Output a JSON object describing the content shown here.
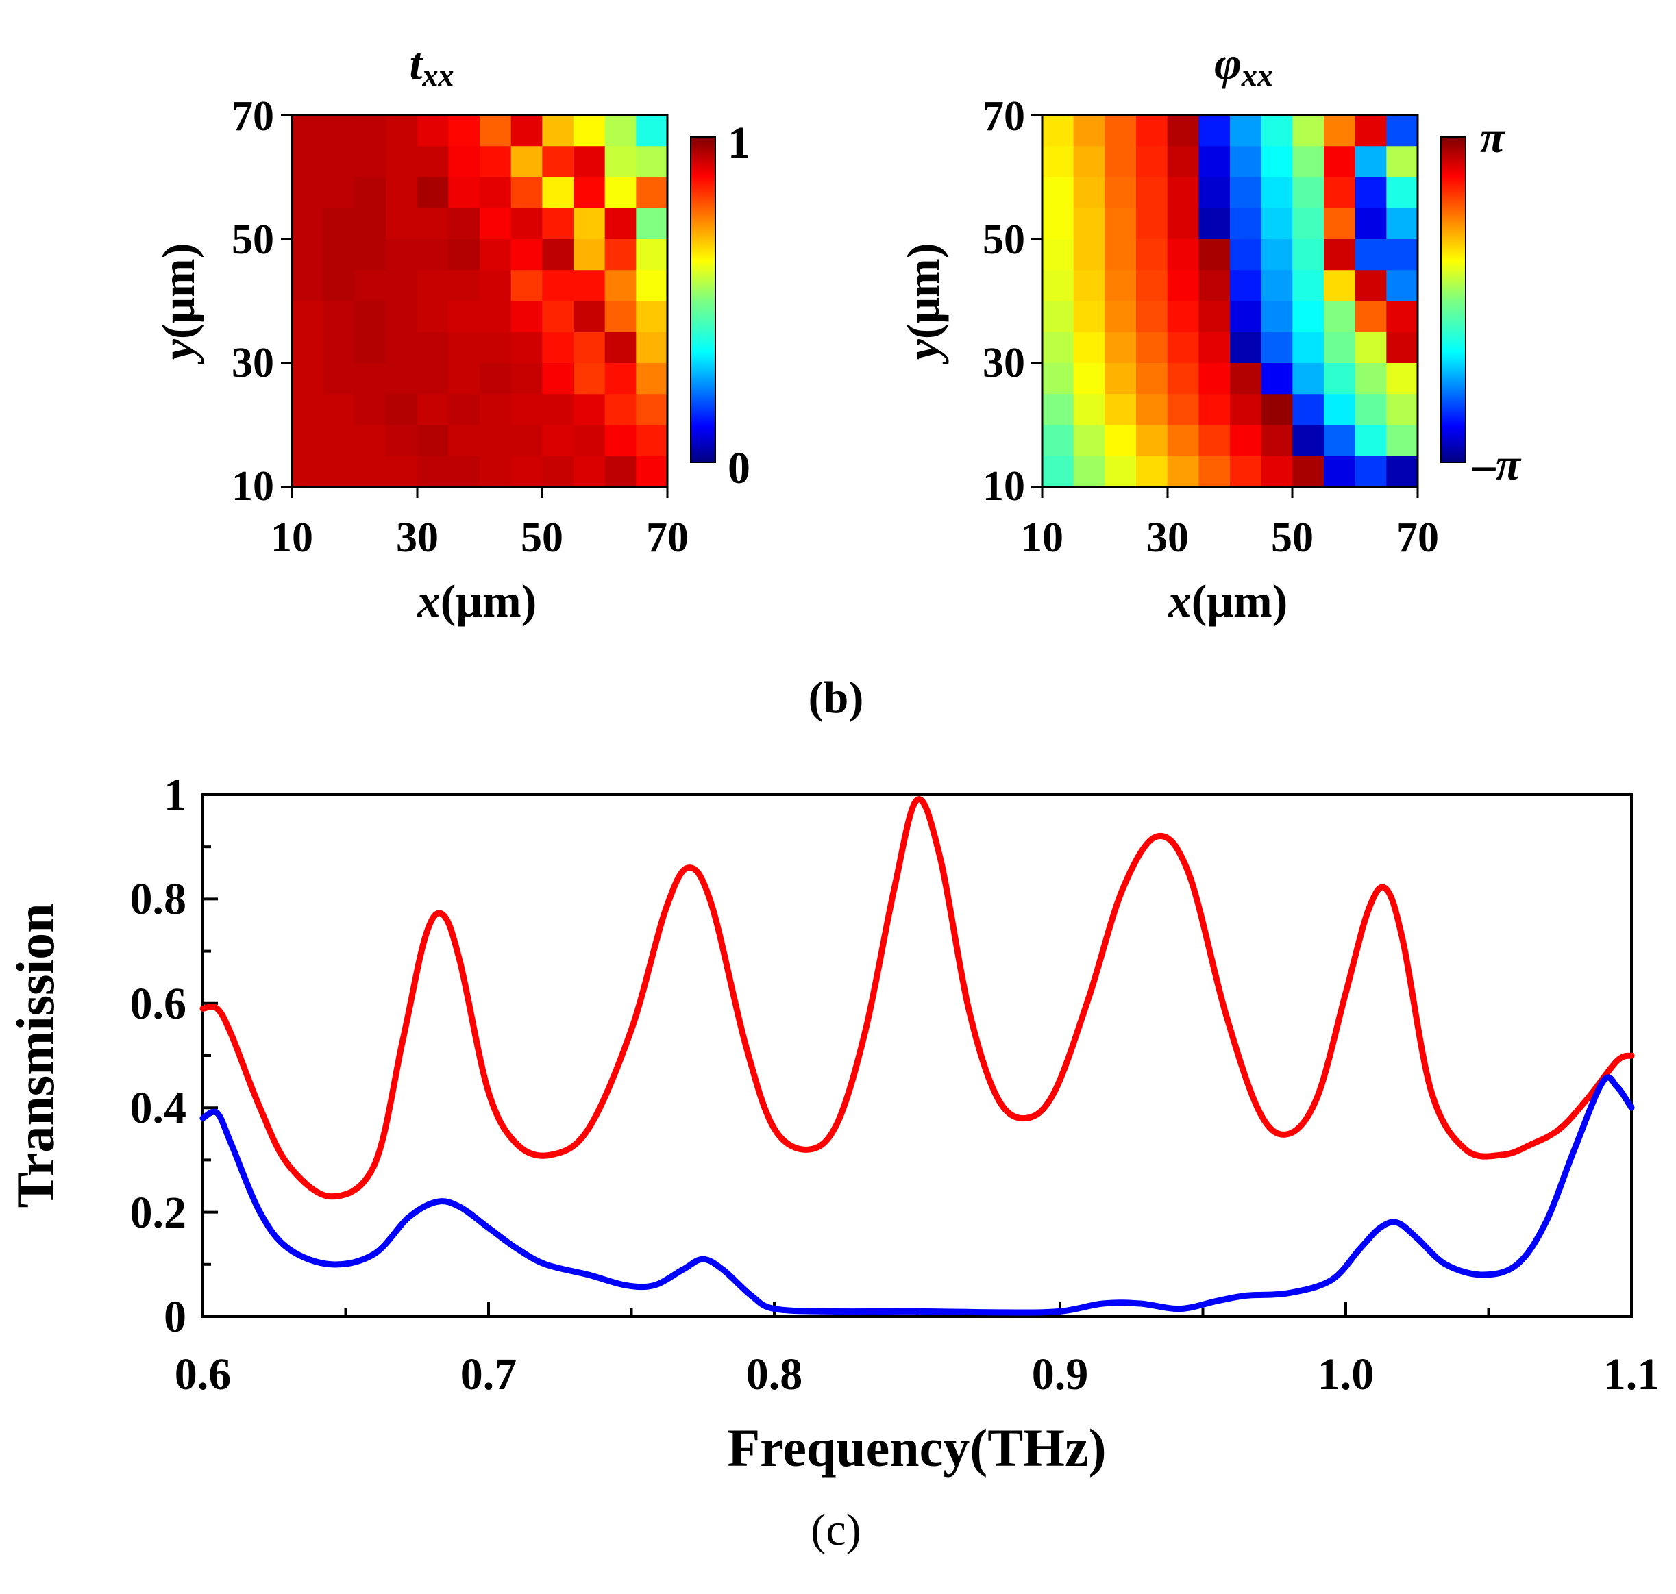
{
  "chart_data": [
    {
      "type": "heatmap",
      "title": "t",
      "title_sub": "xx",
      "xlabel_var": "x",
      "xlabel_unit": "(μm)",
      "ylabel_var": "y",
      "ylabel_unit": "(μm)",
      "xticks": [
        "10",
        "30",
        "50",
        "70"
      ],
      "yticks": [
        "10",
        "30",
        "50",
        "70"
      ],
      "xlim": [
        10,
        70
      ],
      "ylim": [
        10,
        70
      ],
      "colorbar_max_label": "1",
      "colorbar_min_label": "0",
      "colorbar_range": [
        0,
        1
      ],
      "grid_size": 12,
      "values_top_row_first": [
        [
          0.94,
          0.94,
          0.94,
          0.93,
          0.9,
          0.87,
          0.78,
          0.9,
          0.69,
          0.63,
          0.55,
          0.4
        ],
        [
          0.94,
          0.94,
          0.94,
          0.93,
          0.93,
          0.88,
          0.86,
          0.7,
          0.84,
          0.9,
          0.57,
          0.55
        ],
        [
          0.94,
          0.94,
          0.95,
          0.93,
          0.96,
          0.89,
          0.9,
          0.81,
          0.64,
          0.87,
          0.62,
          0.78
        ],
        [
          0.94,
          0.95,
          0.95,
          0.93,
          0.93,
          0.94,
          0.88,
          0.91,
          0.85,
          0.68,
          0.9,
          0.5
        ],
        [
          0.94,
          0.95,
          0.95,
          0.94,
          0.94,
          0.95,
          0.91,
          0.88,
          0.94,
          0.7,
          0.83,
          0.6
        ],
        [
          0.94,
          0.95,
          0.94,
          0.94,
          0.93,
          0.93,
          0.92,
          0.82,
          0.86,
          0.86,
          0.75,
          0.62
        ],
        [
          0.93,
          0.94,
          0.95,
          0.94,
          0.93,
          0.92,
          0.92,
          0.89,
          0.84,
          0.93,
          0.78,
          0.68
        ],
        [
          0.93,
          0.94,
          0.95,
          0.94,
          0.94,
          0.93,
          0.93,
          0.92,
          0.86,
          0.83,
          0.93,
          0.7
        ],
        [
          0.93,
          0.94,
          0.94,
          0.94,
          0.94,
          0.93,
          0.94,
          0.93,
          0.88,
          0.82,
          0.86,
          0.75
        ],
        [
          0.93,
          0.93,
          0.94,
          0.95,
          0.93,
          0.94,
          0.93,
          0.92,
          0.92,
          0.9,
          0.84,
          0.8
        ],
        [
          0.93,
          0.93,
          0.93,
          0.94,
          0.95,
          0.93,
          0.93,
          0.93,
          0.91,
          0.92,
          0.88,
          0.85
        ],
        [
          0.93,
          0.93,
          0.93,
          0.93,
          0.94,
          0.94,
          0.93,
          0.92,
          0.93,
          0.91,
          0.94,
          0.88
        ]
      ]
    },
    {
      "type": "heatmap",
      "title": "φ",
      "title_sub": "xx",
      "xlabel_var": "x",
      "xlabel_unit": "(μm)",
      "ylabel_var": "y",
      "ylabel_unit": "(μm)",
      "xticks": [
        "10",
        "30",
        "50",
        "70"
      ],
      "yticks": [
        "10",
        "30",
        "50",
        "70"
      ],
      "xlim": [
        10,
        70
      ],
      "ylim": [
        10,
        70
      ],
      "colorbar_max_label": "π",
      "colorbar_min_label": "–π",
      "colorbar_range": [
        0,
        1
      ],
      "grid_size": 12,
      "values_top_row_first": [
        [
          0.65,
          0.72,
          0.78,
          0.85,
          0.95,
          0.15,
          0.28,
          0.4,
          0.55,
          0.75,
          0.9,
          0.2
        ],
        [
          0.64,
          0.7,
          0.78,
          0.84,
          0.93,
          0.1,
          0.25,
          0.38,
          0.5,
          0.88,
          0.3,
          0.55
        ],
        [
          0.62,
          0.69,
          0.77,
          0.83,
          0.91,
          0.08,
          0.22,
          0.35,
          0.46,
          0.85,
          0.15,
          0.4
        ],
        [
          0.62,
          0.68,
          0.76,
          0.83,
          0.91,
          0.05,
          0.2,
          0.33,
          0.44,
          0.78,
          0.1,
          0.3
        ],
        [
          0.61,
          0.68,
          0.76,
          0.82,
          0.89,
          0.96,
          0.18,
          0.3,
          0.42,
          0.92,
          0.2,
          0.2
        ],
        [
          0.6,
          0.67,
          0.75,
          0.81,
          0.88,
          0.94,
          0.15,
          0.28,
          0.4,
          0.66,
          0.92,
          0.25
        ],
        [
          0.58,
          0.66,
          0.74,
          0.8,
          0.86,
          0.92,
          0.1,
          0.26,
          0.38,
          0.5,
          0.78,
          0.9
        ],
        [
          0.56,
          0.64,
          0.72,
          0.78,
          0.84,
          0.9,
          0.05,
          0.22,
          0.35,
          0.48,
          0.58,
          0.92
        ],
        [
          0.54,
          0.62,
          0.7,
          0.76,
          0.82,
          0.88,
          0.95,
          0.12,
          0.3,
          0.42,
          0.52,
          0.6
        ],
        [
          0.5,
          0.6,
          0.67,
          0.74,
          0.8,
          0.86,
          0.92,
          0.98,
          0.18,
          0.36,
          0.47,
          0.55
        ],
        [
          0.46,
          0.56,
          0.63,
          0.7,
          0.76,
          0.82,
          0.88,
          0.94,
          0.05,
          0.22,
          0.4,
          0.5
        ],
        [
          0.44,
          0.53,
          0.6,
          0.66,
          0.72,
          0.78,
          0.84,
          0.9,
          0.96,
          0.1,
          0.18,
          0.05
        ]
      ]
    },
    {
      "type": "line",
      "xlabel": "Frequency(THz)",
      "ylabel": "Transmission",
      "xlim": [
        0.6,
        1.1
      ],
      "ylim": [
        0,
        1
      ],
      "xticks": [
        "0.6",
        "0.7",
        "0.8",
        "0.9",
        "1.0",
        "1.1"
      ],
      "yticks": [
        "0",
        "0.2",
        "0.4",
        "0.6",
        "0.8",
        "1"
      ],
      "series": [
        {
          "name": "red",
          "color": "#ff0000",
          "x": [
            0.6,
            0.605,
            0.61,
            0.62,
            0.63,
            0.645,
            0.66,
            0.67,
            0.678,
            0.684,
            0.69,
            0.7,
            0.71,
            0.722,
            0.735,
            0.75,
            0.762,
            0.77,
            0.778,
            0.79,
            0.8,
            0.812,
            0.822,
            0.832,
            0.842,
            0.85,
            0.858,
            0.868,
            0.878,
            0.888,
            0.898,
            0.91,
            0.922,
            0.934,
            0.945,
            0.958,
            0.97,
            0.98,
            0.99,
            1.0,
            1.008,
            1.014,
            1.02,
            1.03,
            1.042,
            1.055,
            1.065,
            1.075,
            1.085,
            1.095,
            1.1
          ],
          "values": [
            0.59,
            0.59,
            0.54,
            0.4,
            0.29,
            0.23,
            0.29,
            0.53,
            0.73,
            0.77,
            0.68,
            0.43,
            0.33,
            0.31,
            0.36,
            0.55,
            0.78,
            0.86,
            0.79,
            0.52,
            0.36,
            0.32,
            0.37,
            0.55,
            0.82,
            0.99,
            0.88,
            0.59,
            0.42,
            0.38,
            0.43,
            0.61,
            0.82,
            0.92,
            0.85,
            0.58,
            0.39,
            0.35,
            0.42,
            0.62,
            0.78,
            0.82,
            0.72,
            0.43,
            0.32,
            0.31,
            0.33,
            0.36,
            0.42,
            0.49,
            0.5
          ]
        },
        {
          "name": "blue",
          "color": "#0000ff",
          "x": [
            0.6,
            0.605,
            0.61,
            0.62,
            0.63,
            0.645,
            0.66,
            0.672,
            0.682,
            0.69,
            0.7,
            0.71,
            0.72,
            0.735,
            0.748,
            0.758,
            0.768,
            0.775,
            0.782,
            0.792,
            0.8,
            0.82,
            0.85,
            0.88,
            0.9,
            0.915,
            0.928,
            0.942,
            0.955,
            0.965,
            0.98,
            0.995,
            1.005,
            1.012,
            1.018,
            1.025,
            1.035,
            1.048,
            1.06,
            1.07,
            1.08,
            1.09,
            1.095,
            1.1
          ],
          "values": [
            0.38,
            0.39,
            0.33,
            0.2,
            0.13,
            0.1,
            0.12,
            0.19,
            0.22,
            0.21,
            0.17,
            0.13,
            0.1,
            0.08,
            0.06,
            0.06,
            0.09,
            0.11,
            0.09,
            0.04,
            0.015,
            0.01,
            0.01,
            0.008,
            0.01,
            0.025,
            0.025,
            0.015,
            0.03,
            0.04,
            0.045,
            0.07,
            0.13,
            0.17,
            0.18,
            0.15,
            0.1,
            0.08,
            0.1,
            0.18,
            0.32,
            0.45,
            0.44,
            0.4
          ]
        }
      ]
    }
  ],
  "captions": {
    "b": "(b)",
    "c": "(c)"
  }
}
